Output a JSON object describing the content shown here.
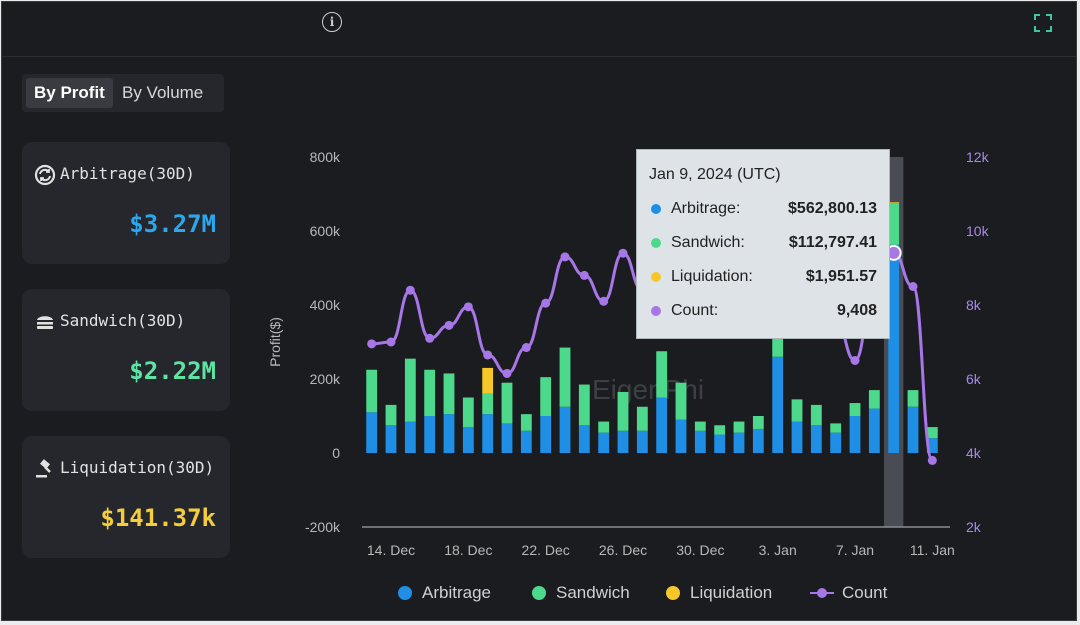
{
  "header": {
    "title": "",
    "info_icon": "info-icon",
    "expand_icon": "expand-icon"
  },
  "toggle": {
    "by_profit": "By Profit",
    "by_volume": "By Volume",
    "selected": "By Profit"
  },
  "cards": [
    {
      "label": "Arbitrage(30D)",
      "value": "$3.27M",
      "color": "#2aa7ef",
      "icon": "arbitrage-icon"
    },
    {
      "label": "Sandwich(30D)",
      "value": "$2.22M",
      "color": "#5fe3a4",
      "icon": "sandwich-icon"
    },
    {
      "label": "Liquidation(30D)",
      "value": "$141.37k",
      "color": "#f4cd3b",
      "icon": "gavel-icon"
    }
  ],
  "colors": {
    "arbitrage": "#1f8fe6",
    "sandwich": "#4cd98b",
    "liquidation": "#f7c729",
    "count": "#a777e8",
    "highlight": "#5a5c63"
  },
  "chart_data": {
    "type": "bar",
    "stacked": true,
    "categories": [
      "13 Dec",
      "14 Dec",
      "15 Dec",
      "16 Dec",
      "17 Dec",
      "18 Dec",
      "19 Dec",
      "20 Dec",
      "21 Dec",
      "22 Dec",
      "23 Dec",
      "24 Dec",
      "25 Dec",
      "26 Dec",
      "27 Dec",
      "28 Dec",
      "29 Dec",
      "30 Dec",
      "31 Dec",
      "1 Jan",
      "2 Jan",
      "3 Jan",
      "4 Jan",
      "5 Jan",
      "6 Jan",
      "7 Jan",
      "8 Jan",
      "9 Jan",
      "10 Jan",
      "11 Jan"
    ],
    "x_tick_labels": [
      "14. Dec",
      "18. Dec",
      "22. Dec",
      "26. Dec",
      "30. Dec",
      "3. Jan",
      "7. Jan",
      "11. Jan"
    ],
    "series": [
      {
        "name": "Arbitrage",
        "values": [
          110000,
          75000,
          85000,
          100000,
          105000,
          70000,
          105000,
          80000,
          60000,
          100000,
          125000,
          75000,
          55000,
          60000,
          60000,
          150000,
          90000,
          60000,
          50000,
          55000,
          65000,
          260000,
          85000,
          75000,
          55000,
          100000,
          120000,
          562800,
          125000,
          40000
        ]
      },
      {
        "name": "Sandwich",
        "values": [
          115000,
          55000,
          170000,
          125000,
          110000,
          80000,
          55000,
          110000,
          45000,
          105000,
          160000,
          110000,
          30000,
          105000,
          65000,
          125000,
          100000,
          25000,
          25000,
          30000,
          35000,
          70000,
          60000,
          55000,
          25000,
          35000,
          50000,
          112797,
          45000,
          30000
        ]
      },
      {
        "name": "Liquidation",
        "values": [
          0,
          0,
          0,
          0,
          0,
          0,
          70000,
          0,
          0,
          0,
          0,
          0,
          0,
          0,
          0,
          0,
          0,
          0,
          0,
          0,
          0,
          35000,
          0,
          0,
          0,
          0,
          0,
          1952,
          0,
          0
        ]
      },
      {
        "name": "Count",
        "axis": "right",
        "values": [
          6950,
          7000,
          8400,
          7100,
          7450,
          7950,
          6650,
          6150,
          6850,
          8050,
          9300,
          8800,
          8100,
          9400,
          8400,
          9700,
          9300,
          8400,
          8400,
          9950,
          9950,
          10600,
          9700,
          8800,
          7600,
          6500,
          8500,
          9408,
          8500,
          3800
        ]
      }
    ],
    "yaxis_left": {
      "label": "Profit($)",
      "ticks": [
        "800k",
        "600k",
        "400k",
        "200k",
        "0",
        "-200k"
      ],
      "min": -200000,
      "max": 800000
    },
    "yaxis_right": {
      "label": "Count",
      "ticks": [
        "12k",
        "10k",
        "8k",
        "6k",
        "4k",
        "2k"
      ],
      "min": 2000,
      "max": 12000
    },
    "highlight_index": 27,
    "watermark": "EigenPhi",
    "legend": [
      "Arbitrage",
      "Sandwich",
      "Liquidation",
      "Count"
    ],
    "legend_position": "bottom",
    "grid": false
  },
  "tooltip": {
    "date": "Jan 9, 2024 (UTC)",
    "rows": [
      {
        "label": "Arbitrage:",
        "value": "$562,800.13",
        "color": "#1f8fe6"
      },
      {
        "label": "Sandwich:",
        "value": "$112,797.41",
        "color": "#4cd98b"
      },
      {
        "label": "Liquidation:",
        "value": "$1,951.57",
        "color": "#f7c729"
      },
      {
        "label": "Count:",
        "value": "9,408",
        "color": "#a777e8"
      }
    ]
  }
}
